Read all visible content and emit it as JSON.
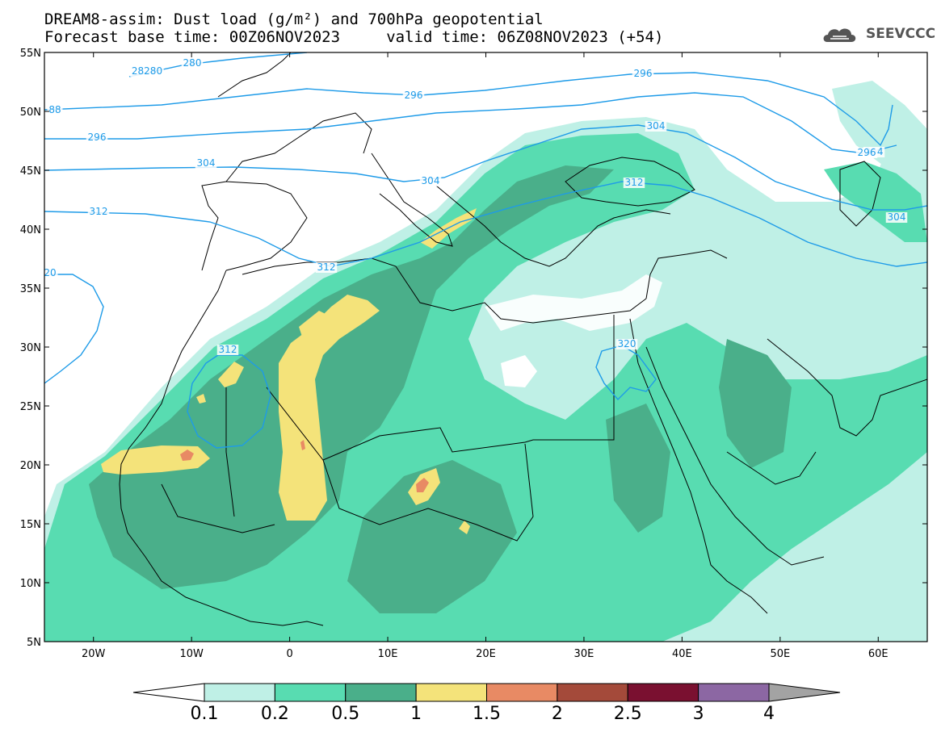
{
  "title": {
    "line1": "DREAM8-assim: Dust load (g/m²) and 700hPa geopotential",
    "line2": "Forecast base time: 00Z06NOV2023     valid time: 06Z08NOV2023 (+54)"
  },
  "logo": {
    "text": "SEEVCCC",
    "icon": "cloud-logo-icon"
  },
  "map": {
    "lon_range": [
      -25,
      65
    ],
    "lat_range": [
      5,
      55
    ],
    "lat_ticks": [
      "55N",
      "50N",
      "45N",
      "40N",
      "35N",
      "30N",
      "25N",
      "20N",
      "15N",
      "10N",
      "5N"
    ],
    "lon_ticks": [
      "20W",
      "10W",
      "0",
      "10E",
      "20E",
      "30E",
      "40E",
      "50E",
      "60E"
    ],
    "contour_color": "#1e9be8",
    "contour_labels": [
      "28280",
      "280",
      "88",
      "296",
      "296",
      "296",
      "304",
      "304",
      "304",
      "304",
      "312",
      "312",
      "312",
      "312",
      "320",
      "20",
      "304",
      "296"
    ]
  },
  "colorbar": {
    "labels": [
      "0.1",
      "0.2",
      "0.5",
      "1",
      "1.5",
      "2",
      "2.5",
      "3",
      "4"
    ],
    "colors": [
      "#ffffff",
      "#bff0e6",
      "#58dcb1",
      "#4aaf8a",
      "#f4e37a",
      "#e88a64",
      "#a44a3a",
      "#7a1030",
      "#8c67a3",
      "#a3a3a3"
    ]
  }
}
